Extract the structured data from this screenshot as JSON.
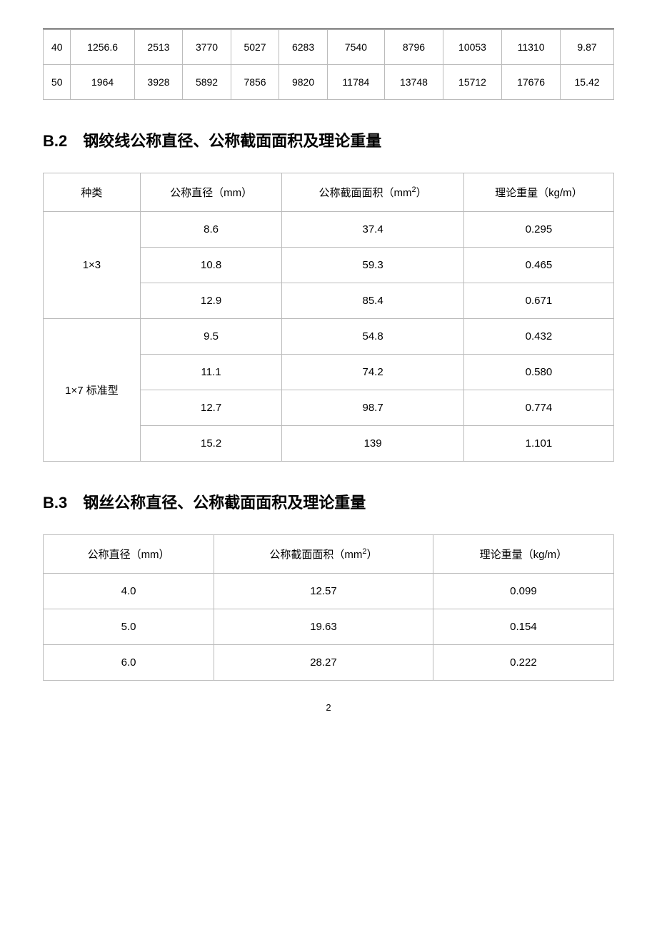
{
  "table1": {
    "rows": [
      [
        "40",
        "1256.6",
        "2513",
        "3770",
        "5027",
        "6283",
        "7540",
        "8796",
        "10053",
        "11310",
        "9.87"
      ],
      [
        "50",
        "1964",
        "3928",
        "5892",
        "7856",
        "9820",
        "11784",
        "13748",
        "15712",
        "17676",
        "15.42"
      ]
    ]
  },
  "section_b2": {
    "heading": "B.2　钢绞线公称直径、公称截面面积及理论重量",
    "headers": [
      "种类",
      "公称直径（mm）",
      "公称截面面积（mm²）",
      "理论重量（kg/m）"
    ],
    "groups": [
      {
        "label": "1×3",
        "rows": [
          [
            "8.6",
            "37.4",
            "0.295"
          ],
          [
            "10.8",
            "59.3",
            "0.465"
          ],
          [
            "12.9",
            "85.4",
            "0.671"
          ]
        ]
      },
      {
        "label": "1×7 标准型",
        "rows": [
          [
            "9.5",
            "54.8",
            "0.432"
          ],
          [
            "11.1",
            "74.2",
            "0.580"
          ],
          [
            "12.7",
            "98.7",
            "0.774"
          ],
          [
            "15.2",
            "139",
            "1.101"
          ]
        ]
      }
    ]
  },
  "section_b3": {
    "heading": "B.3　钢丝公称直径、公称截面面积及理论重量",
    "headers": [
      "公称直径（mm）",
      "公称截面面积（mm²）",
      "理论重量（kg/m）"
    ],
    "rows": [
      [
        "4.0",
        "12.57",
        "0.099"
      ],
      [
        "5.0",
        "19.63",
        "0.154"
      ],
      [
        "6.0",
        "28.27",
        "0.222"
      ]
    ]
  },
  "page_number": "2"
}
